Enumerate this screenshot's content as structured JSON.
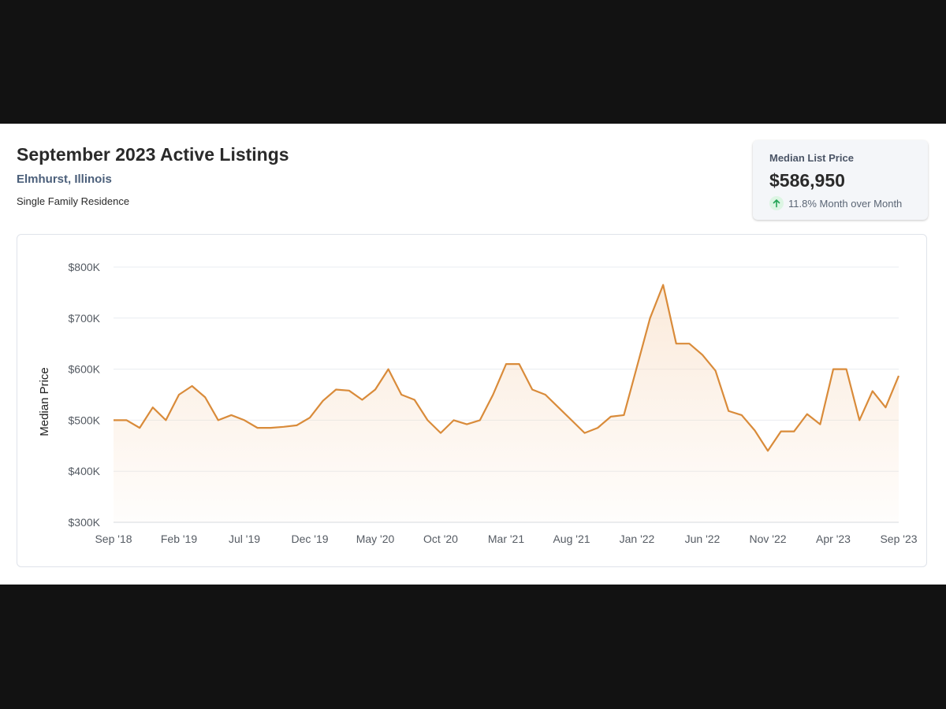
{
  "header": {
    "title": "September 2023 Active Listings",
    "location": "Elmhurst, Illinois",
    "property_type": "Single Family Residence"
  },
  "stat_card": {
    "label": "Median List Price",
    "value": "$586,950",
    "change_text": "11.8% Month over Month",
    "change_direction": "up",
    "change_icon": "arrow-up-icon",
    "change_color": "#22a355"
  },
  "colors": {
    "line": "#d98b3a",
    "area_fill": "#f7d9bd"
  },
  "chart_data": {
    "type": "area",
    "ylabel": "Median Price",
    "xlabel": "",
    "ylim": [
      300000,
      800000
    ],
    "y_ticks": [
      300000,
      400000,
      500000,
      600000,
      700000,
      800000
    ],
    "y_tick_labels": [
      "$300K",
      "$400K",
      "$500K",
      "$600K",
      "$700K",
      "$800K"
    ],
    "x_tick_labels": [
      "Sep '18",
      "Feb '19",
      "Jul '19",
      "Dec '19",
      "May '20",
      "Oct '20",
      "Mar '21",
      "Aug '21",
      "Jan '22",
      "Jun '22",
      "Nov '22",
      "Apr '23",
      "Sep '23"
    ],
    "x_tick_index": [
      0,
      5,
      10,
      15,
      20,
      25,
      30,
      35,
      40,
      45,
      50,
      55,
      60
    ],
    "grid": true,
    "legend": "none",
    "months": [
      "2018-09",
      "2018-10",
      "2018-11",
      "2018-12",
      "2019-01",
      "2019-02",
      "2019-03",
      "2019-04",
      "2019-05",
      "2019-06",
      "2019-07",
      "2019-08",
      "2019-09",
      "2019-10",
      "2019-11",
      "2019-12",
      "2020-01",
      "2020-02",
      "2020-03",
      "2020-04",
      "2020-05",
      "2020-06",
      "2020-07",
      "2020-08",
      "2020-09",
      "2020-10",
      "2020-11",
      "2020-12",
      "2021-01",
      "2021-02",
      "2021-03",
      "2021-04",
      "2021-05",
      "2021-06",
      "2021-07",
      "2021-08",
      "2021-09",
      "2021-10",
      "2021-11",
      "2021-12",
      "2022-01",
      "2022-02",
      "2022-03",
      "2022-04",
      "2022-05",
      "2022-06",
      "2022-07",
      "2022-08",
      "2022-09",
      "2022-10",
      "2022-11",
      "2022-12",
      "2023-01",
      "2023-02",
      "2023-03",
      "2023-04",
      "2023-05",
      "2023-06",
      "2023-07",
      "2023-08",
      "2023-09"
    ],
    "values": [
      500000,
      500000,
      485000,
      525000,
      500000,
      550000,
      567000,
      545000,
      500000,
      510000,
      500000,
      485000,
      485000,
      487000,
      490000,
      505000,
      538000,
      560000,
      558000,
      540000,
      560000,
      600000,
      550000,
      540000,
      500000,
      475000,
      500000,
      492000,
      500000,
      550000,
      610000,
      610000,
      560000,
      550000,
      525000,
      500000,
      475000,
      485000,
      507000,
      510000,
      605000,
      700000,
      765000,
      650000,
      650000,
      628000,
      597000,
      518000,
      510000,
      480000,
      440000,
      478000,
      478000,
      512000,
      492000,
      600000,
      600000,
      500000,
      557000,
      525000,
      586950
    ]
  }
}
